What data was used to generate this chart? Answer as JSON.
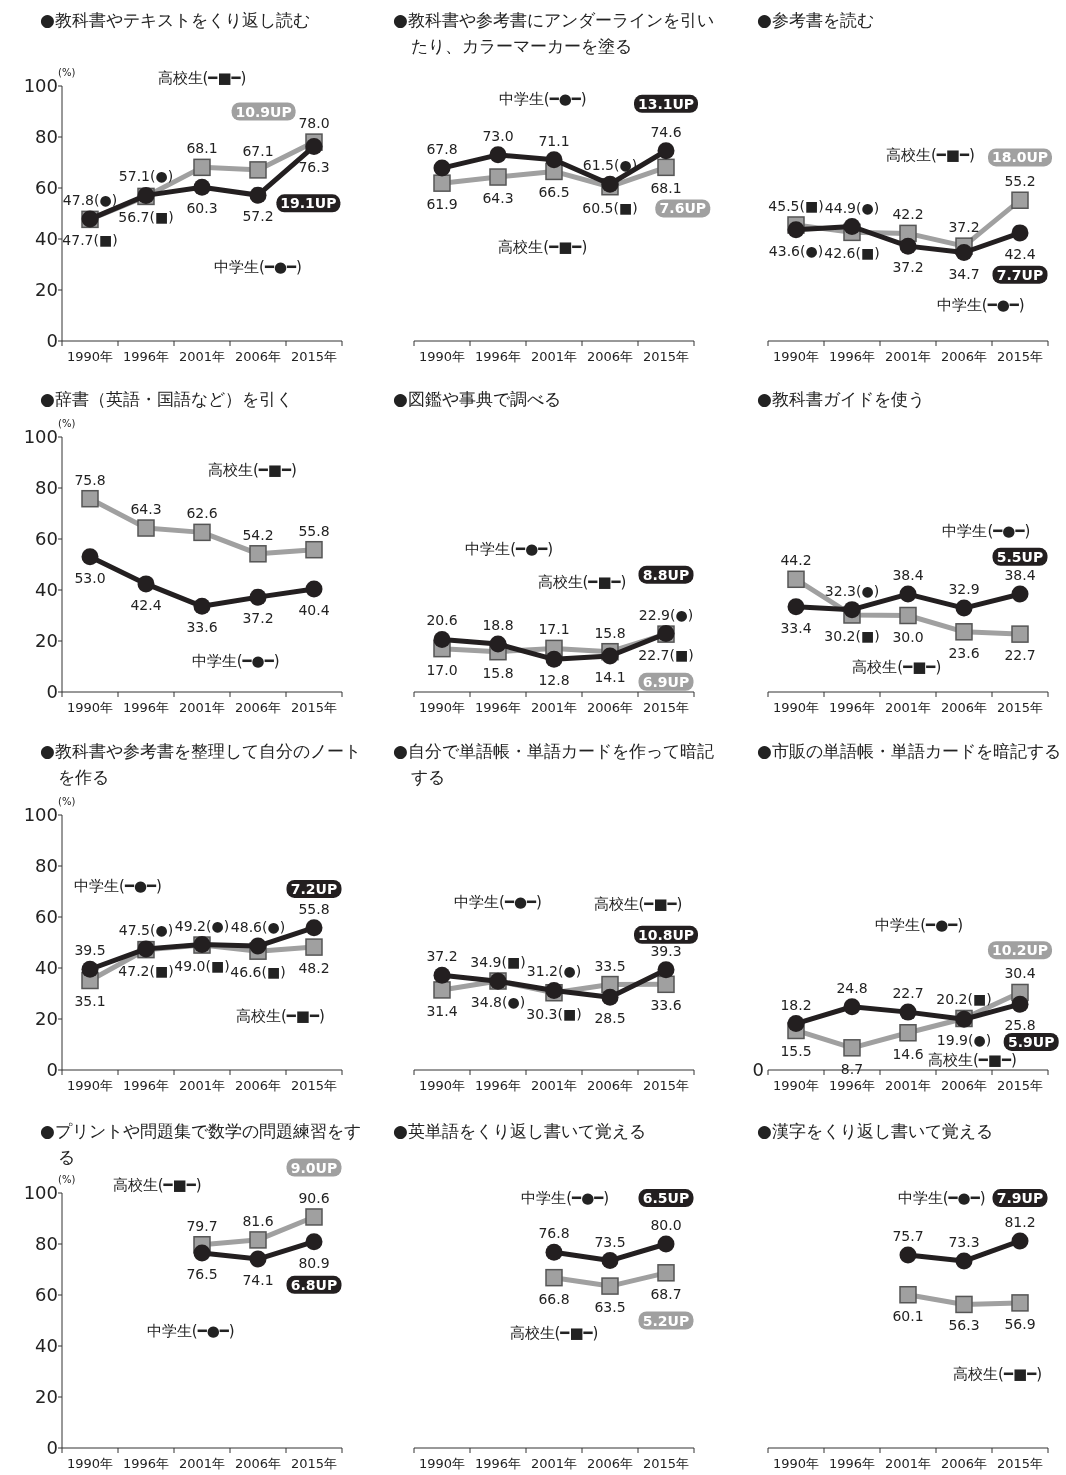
{
  "chart_data": [
    {
      "type": "line",
      "title": "●教科書やテキストをくり返し読む",
      "ylabel": "(%)",
      "categories": [
        "1990年",
        "1996年",
        "2001年",
        "2006年",
        "2015年"
      ],
      "ylim": [
        0,
        100
      ],
      "yticks": [
        0,
        20,
        40,
        60,
        80,
        100
      ],
      "series": [
        {
          "color": "#231f20",
          "marker": "circle",
          "values": [
            47.8,
            57.1,
            60.3,
            57.2,
            76.3
          ],
          "value_labels": [
            "47.8(●)",
            "57.1(●)",
            "60.3",
            "57.2",
            "76.3"
          ]
        },
        {
          "color": "#a0a0a0",
          "marker": "square",
          "values": [
            47.7,
            56.7,
            68.1,
            67.1,
            78.0
          ],
          "value_labels": [
            "47.7(■)",
            "56.7(■)",
            "68.1",
            "67.1",
            "78.0"
          ]
        }
      ],
      "annotations": [
        "高校生(━■━)",
        "中学生(━●━)",
        "10.9UP",
        "19.1UP"
      ]
    },
    {
      "type": "line",
      "title": "●教科書や参考書にアンダーラインを引いたり、カラーマーカーを塗る",
      "categories": [
        "1990年",
        "1996年",
        "2001年",
        "2006年",
        "2015年"
      ],
      "ylim": [
        0,
        100
      ],
      "tick_labels": "x",
      "series": [
        {
          "color": "#231f20",
          "marker": "circle",
          "values": [
            67.8,
            73.0,
            71.1,
            61.5,
            74.6
          ],
          "value_labels": [
            "67.8",
            "73.0",
            "71.1",
            "61.5(●)",
            "74.6"
          ]
        },
        {
          "color": "#a0a0a0",
          "marker": "square",
          "values": [
            61.9,
            64.3,
            66.5,
            60.5,
            68.1
          ],
          "value_labels": [
            "61.9",
            "64.3",
            "66.5",
            "60.5(■)",
            "68.1"
          ]
        }
      ],
      "annotations": [
        "中学生(━●━)",
        "高校生(━■━)",
        "13.1UP",
        "7.6UP"
      ]
    },
    {
      "type": "line",
      "title": "●参考書を読む",
      "categories": [
        "1990年",
        "1996年",
        "2001年",
        "2006年",
        "2015年"
      ],
      "ylim": [
        0,
        100
      ],
      "tick_labels": "x",
      "series": [
        {
          "color": "#231f20",
          "marker": "circle",
          "values": [
            43.6,
            44.9,
            37.2,
            34.7,
            42.4
          ],
          "value_labels": [
            "43.6(●)",
            "44.9(●)",
            "37.2",
            "34.7",
            "42.4"
          ]
        },
        {
          "color": "#a0a0a0",
          "marker": "square",
          "values": [
            45.5,
            42.6,
            42.2,
            37.2,
            55.2
          ],
          "value_labels": [
            "45.5(■)",
            "42.6(■)",
            "42.2",
            "37.2",
            "55.2"
          ]
        }
      ],
      "annotations": [
        "高校生(━■━)",
        "中学生(━●━)",
        "18.0UP",
        "7.7UP"
      ]
    },
    {
      "type": "line",
      "title": "●辞書（英語・国語など）を引く",
      "ylabel": "(%)",
      "categories": [
        "1990年",
        "1996年",
        "2001年",
        "2006年",
        "2015年"
      ],
      "ylim": [
        0,
        100
      ],
      "yticks": [
        0,
        20,
        40,
        60,
        80,
        100
      ],
      "series": [
        {
          "color": "#231f20",
          "marker": "circle",
          "values": [
            53.0,
            42.4,
            33.6,
            37.2,
            40.4
          ],
          "value_labels": [
            "53.0",
            "42.4",
            "33.6",
            "37.2",
            "40.4"
          ]
        },
        {
          "color": "#a0a0a0",
          "marker": "square",
          "values": [
            75.8,
            64.3,
            62.6,
            54.2,
            55.8
          ],
          "value_labels": [
            "75.8",
            "64.3",
            "62.6",
            "54.2",
            "55.8"
          ]
        }
      ],
      "annotations": [
        "高校生(━■━)",
        "中学生(━●━)"
      ]
    },
    {
      "type": "line",
      "title": "●図鑑や事典で調べる",
      "categories": [
        "1990年",
        "1996年",
        "2001年",
        "2006年",
        "2015年"
      ],
      "ylim": [
        0,
        100
      ],
      "tick_labels": "x",
      "series": [
        {
          "color": "#231f20",
          "marker": "circle",
          "values": [
            20.6,
            18.8,
            12.8,
            14.1,
            22.9
          ],
          "value_labels": [
            "20.6",
            "18.8",
            "12.8",
            "14.1",
            "22.9(●)"
          ]
        },
        {
          "color": "#a0a0a0",
          "marker": "square",
          "values": [
            17.0,
            15.8,
            17.1,
            15.8,
            22.7
          ],
          "value_labels": [
            "17.0",
            "15.8",
            "17.1",
            "15.8",
            "22.7(■)"
          ]
        }
      ],
      "annotations": [
        "中学生(━●━)",
        "高校生(━■━)",
        "8.8UP",
        "6.9UP"
      ]
    },
    {
      "type": "line",
      "title": "●教科書ガイドを使う",
      "categories": [
        "1990年",
        "1996年",
        "2001年",
        "2006年",
        "2015年"
      ],
      "ylim": [
        0,
        100
      ],
      "tick_labels": "x",
      "series": [
        {
          "color": "#231f20",
          "marker": "circle",
          "values": [
            33.4,
            32.3,
            38.4,
            32.9,
            38.4
          ],
          "value_labels": [
            "33.4",
            "32.3(●)",
            "38.4",
            "32.9",
            "38.4"
          ]
        },
        {
          "color": "#a0a0a0",
          "marker": "square",
          "values": [
            44.2,
            30.2,
            30.0,
            23.6,
            22.7
          ],
          "value_labels": [
            "44.2",
            "30.2(■)",
            "30.0",
            "23.6",
            "22.7"
          ]
        }
      ],
      "annotations": [
        "中学生(━●━)",
        "高校生(━■━)",
        "5.5UP"
      ]
    },
    {
      "type": "line",
      "title": "●教科書や参考書を整理して自分のノートを作る",
      "ylabel": "(%)",
      "categories": [
        "1990年",
        "1996年",
        "2001年",
        "2006年",
        "2015年"
      ],
      "ylim": [
        0,
        100
      ],
      "yticks": [
        0,
        20,
        40,
        60,
        80,
        100
      ],
      "series": [
        {
          "color": "#231f20",
          "marker": "circle",
          "values": [
            39.5,
            47.5,
            49.2,
            48.6,
            55.8
          ],
          "value_labels": [
            "39.5",
            "47.5(●)",
            "49.2(●)",
            "48.6(●)",
            "55.8"
          ]
        },
        {
          "color": "#a0a0a0",
          "marker": "square",
          "values": [
            35.1,
            47.2,
            49.0,
            46.6,
            48.2
          ],
          "value_labels": [
            "35.1",
            "47.2(■)",
            "49.0(■)",
            "46.6(■)",
            "48.2"
          ]
        }
      ],
      "annotations": [
        "中学生(━●━)",
        "高校生(━■━)",
        "7.2UP"
      ]
    },
    {
      "type": "line",
      "title": "●自分で単語帳・単語カードを作って暗記する",
      "categories": [
        "1990年",
        "1996年",
        "2001年",
        "2006年",
        "2015年"
      ],
      "ylim": [
        0,
        100
      ],
      "tick_labels": "x",
      "series": [
        {
          "color": "#231f20",
          "marker": "circle",
          "values": [
            37.2,
            34.8,
            31.2,
            28.5,
            39.3
          ],
          "value_labels": [
            "37.2",
            "34.8(●)",
            "31.2(●)",
            "28.5",
            "39.3"
          ]
        },
        {
          "color": "#a0a0a0",
          "marker": "square",
          "values": [
            31.4,
            34.9,
            30.3,
            33.5,
            33.6
          ],
          "value_labels": [
            "31.4",
            "34.9(■)",
            "30.3(■)",
            "33.5",
            "33.6"
          ]
        }
      ],
      "annotations": [
        "中学生(━●━)",
        "高校生(━■━)",
        "10.8UP"
      ]
    },
    {
      "type": "line",
      "title": "●市販の単語帳・単語カードを暗記する",
      "categories": [
        "1990年",
        "1996年",
        "2001年",
        "2006年",
        "2015年"
      ],
      "ylim": [
        0,
        100
      ],
      "tick_labels": "x",
      "series": [
        {
          "color": "#231f20",
          "marker": "circle",
          "values": [
            18.2,
            24.8,
            22.7,
            19.9,
            25.8
          ],
          "value_labels": [
            "18.2",
            "24.8",
            "22.7",
            "19.9(●)",
            "25.8"
          ]
        },
        {
          "color": "#a0a0a0",
          "marker": "square",
          "values": [
            15.5,
            8.7,
            14.6,
            20.2,
            30.4
          ],
          "value_labels": [
            "15.5",
            "8.7",
            "14.6",
            "20.2(■)",
            "30.4"
          ]
        }
      ],
      "annotations": [
        "中学生(━●━)",
        "高校生(━■━)",
        "10.2UP",
        "5.9UP",
        "0"
      ]
    },
    {
      "type": "line",
      "title": "●プリントや問題集で数学の問題練習をする",
      "ylabel": "(%)",
      "categories": [
        "1990年",
        "1996年",
        "2001年",
        "2006年",
        "2015年"
      ],
      "ylim": [
        0,
        100
      ],
      "yticks": [
        0,
        20,
        40,
        60,
        80,
        100
      ],
      "series": [
        {
          "color": "#231f20",
          "marker": "circle",
          "values": [
            null,
            null,
            76.5,
            74.1,
            80.9
          ],
          "value_labels": [
            null,
            null,
            "76.5",
            "74.1",
            "80.9"
          ]
        },
        {
          "color": "#a0a0a0",
          "marker": "square",
          "values": [
            null,
            null,
            79.7,
            81.6,
            90.6
          ],
          "value_labels": [
            null,
            null,
            "79.7",
            "81.6",
            "90.6"
          ]
        }
      ],
      "annotations": [
        "高校生(━■━)",
        "中学生(━●━)",
        "9.0UP",
        "6.8UP"
      ]
    },
    {
      "type": "line",
      "title": "●英単語をくり返し書いて覚える",
      "categories": [
        "1990年",
        "1996年",
        "2001年",
        "2006年",
        "2015年"
      ],
      "ylim": [
        0,
        100
      ],
      "tick_labels": "x",
      "series": [
        {
          "color": "#231f20",
          "marker": "circle",
          "values": [
            null,
            null,
            76.8,
            73.5,
            80.0
          ],
          "value_labels": [
            null,
            null,
            "76.8",
            "73.5",
            "80.0"
          ]
        },
        {
          "color": "#a0a0a0",
          "marker": "square",
          "values": [
            null,
            null,
            66.8,
            63.5,
            68.7
          ],
          "value_labels": [
            null,
            null,
            "66.8",
            "63.5",
            "68.7"
          ]
        }
      ],
      "annotations": [
        "中学生(━●━)",
        "高校生(━■━)",
        "6.5UP",
        "5.2UP"
      ]
    },
    {
      "type": "line",
      "title": "●漢字をくり返し書いて覚える",
      "categories": [
        "1990年",
        "1996年",
        "2001年",
        "2006年",
        "2015年"
      ],
      "ylim": [
        0,
        100
      ],
      "tick_labels": "x",
      "series": [
        {
          "color": "#231f20",
          "marker": "circle",
          "values": [
            null,
            null,
            75.7,
            73.3,
            81.2
          ],
          "value_labels": [
            null,
            null,
            "75.7",
            "73.3",
            "81.2"
          ]
        },
        {
          "color": "#a0a0a0",
          "marker": "square",
          "values": [
            null,
            null,
            60.1,
            56.3,
            56.9
          ],
          "value_labels": [
            null,
            null,
            "60.1",
            "56.3",
            "56.9"
          ]
        }
      ],
      "annotations": [
        "中学生(━●━)",
        "高校生(━■━)",
        "7.9UP"
      ]
    }
  ]
}
